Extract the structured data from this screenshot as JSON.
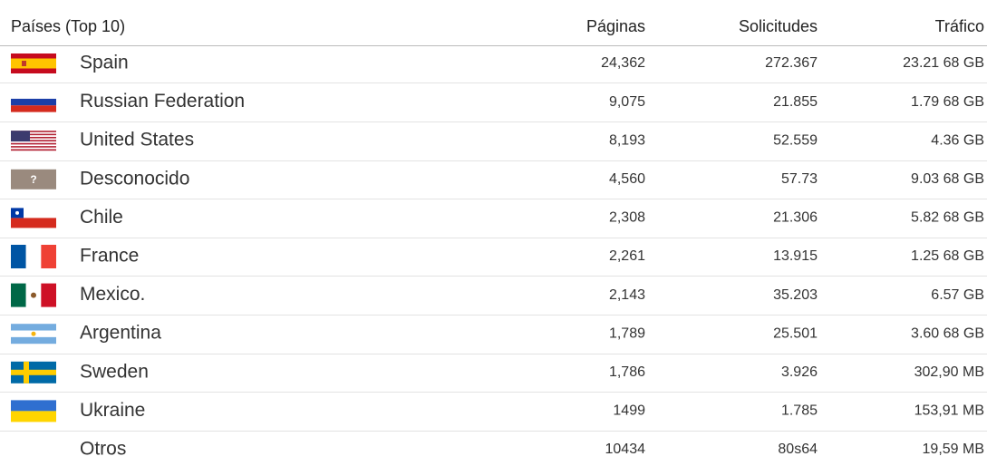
{
  "table": {
    "header": [
      "Países (Top 10)",
      "Páginas",
      "Solicitudes",
      "Tráfico"
    ],
    "unknown_flag_mark": "?",
    "rows": [
      [
        "Spain",
        "24,362",
        "272.367",
        "23.21 68 GB"
      ],
      [
        "Russian Federation",
        "9,075",
        "21.855",
        "1.79 68 GB"
      ],
      [
        "United States",
        "8,193",
        "52.559",
        "4.36 GB"
      ],
      [
        "Desconocido",
        "4,560",
        "57.73",
        "9.03 68 GB"
      ],
      [
        "Chile",
        "2,308",
        "21.306",
        "5.82 68 GB"
      ],
      [
        "France",
        "2,261",
        "13.915",
        "1.25 68 GB"
      ],
      [
        "Mexico.",
        "2,143",
        "35.203",
        "6.57 GB"
      ],
      [
        "Argentina",
        "1,789",
        "25.501",
        "3.60 68 GB"
      ],
      [
        "Sweden",
        "1,786",
        "3.926",
        "302,90 MB"
      ],
      [
        "Ukraine",
        "1499",
        "1.785",
        "153,91 MB"
      ],
      [
        "Otros",
        "10434",
        "80s64",
        "19,59 MB"
      ]
    ]
  }
}
